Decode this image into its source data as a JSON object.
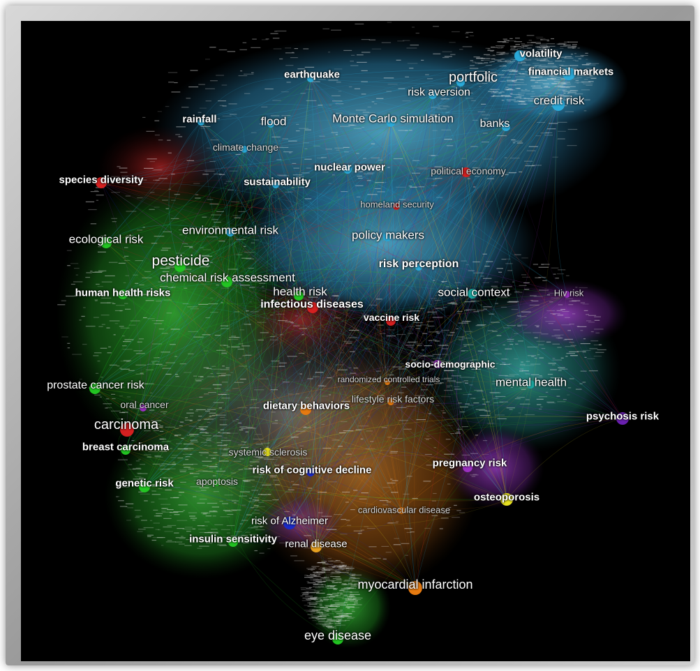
{
  "clusters": [
    {
      "id": "finance",
      "color": "#2aa9d8"
    },
    {
      "id": "environment",
      "color": "#22c422"
    },
    {
      "id": "infection",
      "color": "#d42020"
    },
    {
      "id": "social",
      "color": "#1aa6a0"
    },
    {
      "id": "psych",
      "color": "#9a30c0"
    },
    {
      "id": "cardio",
      "color": "#e67a10"
    },
    {
      "id": "neuro",
      "color": "#1a2ac8"
    },
    {
      "id": "bone",
      "color": "#e6e020"
    }
  ],
  "nodes": [
    {
      "id": "volatility",
      "label": "volatility",
      "color": "#2aa9d8",
      "size": 8
    },
    {
      "id": "financial-markets",
      "label": "financial markets",
      "color": "#2aa9d8",
      "size": 9
    },
    {
      "id": "portfolio",
      "label": "portfolic",
      "color": "#2aa9d8",
      "size": 6
    },
    {
      "id": "earthquake",
      "label": "earthquake",
      "color": "#2aa9d8",
      "size": 5
    },
    {
      "id": "risk-aversion",
      "label": "risk aversion",
      "color": "#2aa9d8",
      "size": 6
    },
    {
      "id": "credit-risk",
      "label": "credit risk",
      "color": "#2aa9d8",
      "size": 9
    },
    {
      "id": "rainfall",
      "label": "rainfall",
      "color": "#2aa9d8",
      "size": 5
    },
    {
      "id": "flood",
      "label": "flood",
      "color": "#2aa9d8",
      "size": 5
    },
    {
      "id": "monte-carlo",
      "label": "Monte Carlo simulation",
      "color": "#2aa9d8",
      "size": 6
    },
    {
      "id": "banks",
      "label": "banks",
      "color": "#2aa9d8",
      "size": 6
    },
    {
      "id": "climate-change",
      "label": "climate change",
      "color": "#2aa9d8",
      "size": 5
    },
    {
      "id": "nuclear-power",
      "label": "nuclear power",
      "color": "#2aa9d8",
      "size": 6
    },
    {
      "id": "political-economy",
      "label": "political economy",
      "color": "#d42020",
      "size": 7
    },
    {
      "id": "species-diversity",
      "label": "species diversity",
      "color": "#d42020",
      "size": 8
    },
    {
      "id": "sustainability",
      "label": "sustainability",
      "color": "#2aa9d8",
      "size": 5
    },
    {
      "id": "homeland-security",
      "label": "homeland security",
      "color": "#d42020",
      "size": 5
    },
    {
      "id": "environmental-risk",
      "label": "environmental risk",
      "color": "#2aa9d8",
      "size": 6
    },
    {
      "id": "policy-makers",
      "label": "policy makers",
      "color": "#2aa9d8",
      "size": 6
    },
    {
      "id": "ecological-risk",
      "label": "ecological risk",
      "color": "#22c422",
      "size": 8
    },
    {
      "id": "pesticide",
      "label": "pesticide",
      "color": "#22c422",
      "size": 8
    },
    {
      "id": "risk-perception",
      "label": "risk perception",
      "color": "#2aa9d8",
      "size": 5
    },
    {
      "id": "chemical-risk-assessment",
      "label": "chemical risk assessment",
      "color": "#22c422",
      "size": 8
    },
    {
      "id": "human-health-risks",
      "label": "human health risks",
      "color": "#22c422",
      "size": 7
    },
    {
      "id": "health-risk",
      "label": "health risk",
      "color": "#22c422",
      "size": 7
    },
    {
      "id": "social-context",
      "label": "social context",
      "color": "#1aa6a0",
      "size": 7
    },
    {
      "id": "hiv-risk",
      "label": "Hiv risk",
      "color": "#9a30c0",
      "size": 5
    },
    {
      "id": "infectious-diseases",
      "label": "infectious diseases",
      "color": "#d42020",
      "size": 8
    },
    {
      "id": "vaccine-risk",
      "label": "vaccine risk",
      "color": "#d42020",
      "size": 7
    },
    {
      "id": "socio-demographic",
      "label": "socio-demographic",
      "color": "#9a30c0",
      "size": 6
    },
    {
      "id": "rct",
      "label": "randomized controlled trials",
      "color": "#e67a10",
      "size": 4
    },
    {
      "id": "mental-health",
      "label": "mental health",
      "color": "#1aa6a0",
      "size": 6
    },
    {
      "id": "prostate-cancer-risk",
      "label": "prostate cancer risk",
      "color": "#22c422",
      "size": 8
    },
    {
      "id": "oral-cancer",
      "label": "oral cancer",
      "color": "#9a30c0",
      "size": 5
    },
    {
      "id": "dietary-behaviors",
      "label": "dietary behaviors",
      "color": "#e67a10",
      "size": 8
    },
    {
      "id": "lifestyle-risk-factors",
      "label": "lifestyle risk factors",
      "color": "#e67a10",
      "size": 5
    },
    {
      "id": "psychosis-risk",
      "label": "psychosis risk",
      "color": "#6a20b0",
      "size": 9
    },
    {
      "id": "carcinoma",
      "label": "carcinoma",
      "color": "#d42020",
      "size": 10
    },
    {
      "id": "breast-carcinoma",
      "label": "breast carcinoma",
      "color": "#22c422",
      "size": 7
    },
    {
      "id": "systemic-sclerosis",
      "label": "systemic sclerosis",
      "color": "#e6e020",
      "size": 6
    },
    {
      "id": "pregnancy-risk",
      "label": "pregnancy risk",
      "color": "#9a30c0",
      "size": 7
    },
    {
      "id": "risk-of-cognitive-decline",
      "label": "risk of cognitive decline",
      "color": "#1a2ac8",
      "size": 6
    },
    {
      "id": "genetic-risk",
      "label": "genetic risk",
      "color": "#22c422",
      "size": 8
    },
    {
      "id": "apoptosis",
      "label": "apoptosis",
      "color": "#22c422",
      "size": 5
    },
    {
      "id": "osteoporosis",
      "label": "osteoporosis",
      "color": "#e6e020",
      "size": 9
    },
    {
      "id": "cardiovascular-disease",
      "label": "cardiovascular disease",
      "color": "#e67a10",
      "size": 5
    },
    {
      "id": "risk-of-alzheimer",
      "label": "risk of Alzheimer",
      "color": "#1a2ac8",
      "size": 9
    },
    {
      "id": "insulin-sensitivity",
      "label": "insulin sensitivity",
      "color": "#22c422",
      "size": 7
    },
    {
      "id": "renal-disease",
      "label": "renal disease",
      "color": "#e6a020",
      "size": 8
    },
    {
      "id": "myocardial-infarction",
      "label": "myocardial infarction",
      "color": "#e67a10",
      "size": 10
    },
    {
      "id": "eye-disease",
      "label": "eye disease",
      "color": "#22c422",
      "size": 8
    }
  ]
}
